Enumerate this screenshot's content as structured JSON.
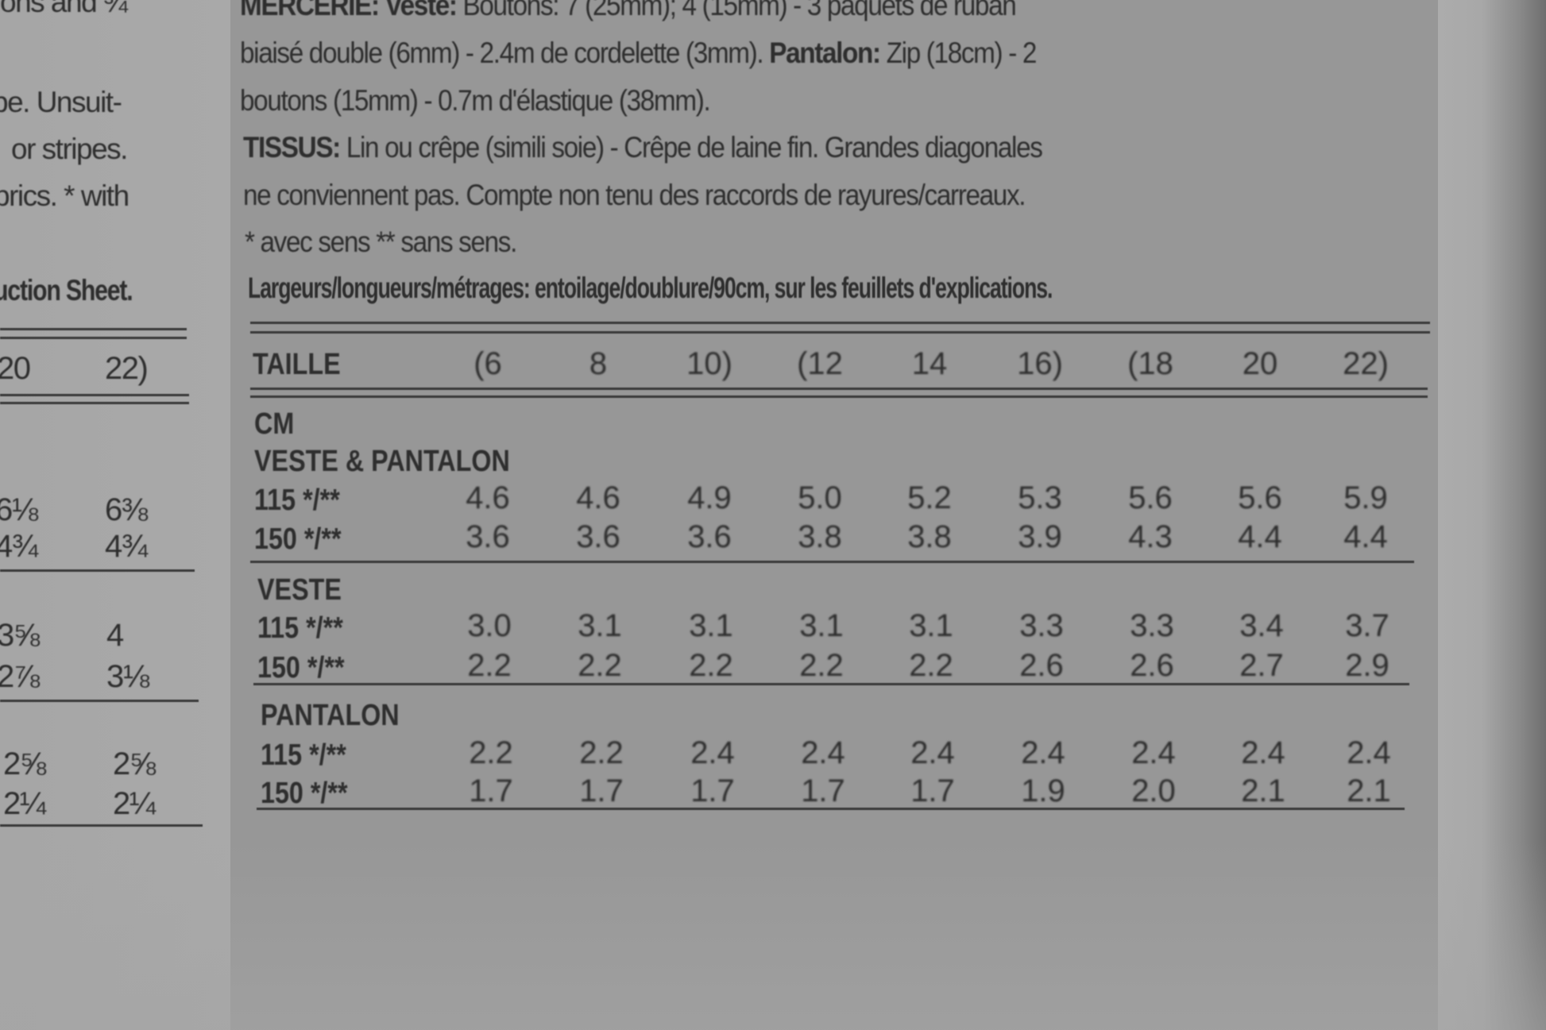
{
  "left_column": {
    "lines": [
      "ons and ¾",
      "pe. Unsuit-",
      "or stripes.",
      "brics. * with",
      "uction Sheet."
    ],
    "header": [
      "20",
      "22)"
    ],
    "rows": [
      [
        "6⅛",
        "6⅜"
      ],
      [
        "4¾",
        "4¾"
      ],
      [
        "3⅝",
        "4"
      ],
      [
        "2⅞",
        "3⅛"
      ],
      [
        "2⅝",
        "2⅝"
      ],
      [
        "2¼",
        "2¼"
      ]
    ]
  },
  "notions": {
    "line1_bold": "MERCERIE: Veste:",
    "line1_rest": " Boutons: 7 (25mm); 4 (15mm) - 3 paquets de ruban",
    "line2_a": "biaisé double (6mm) - 2.4m de cordelette (3mm). ",
    "line2_bold": "Pantalon:",
    "line2_b": " Zip (18cm) - 2",
    "line3": "boutons (15mm) - 0.7m d'élastique (38mm).",
    "fabric_bold": "TISSUS:",
    "fabric_rest": " Lin ou crêpe (simili soie) - Crêpe de laine fin. Grandes diagonales",
    "line5": "ne conviennent pas. Compte non tenu des raccords de rayures/carreaux.",
    "line6": "* avec sens ** sans sens.",
    "line7": "Largeurs/longueurs/métrages: entoilage/doublure/90cm, sur les feuillets d'explications."
  },
  "table": {
    "header_label": "TAILLE",
    "sizes": [
      "(6",
      "8",
      "10)",
      "(12",
      "14",
      "16)",
      "(18",
      "20",
      "22)"
    ],
    "unit": "CM",
    "sections": [
      {
        "title": "VESTE & PANTALON",
        "rows": [
          {
            "label": "115 */**",
            "values": [
              "4.6",
              "4.6",
              "4.9",
              "5.0",
              "5.2",
              "5.3",
              "5.6",
              "5.6",
              "5.9"
            ]
          },
          {
            "label": "150 */**",
            "values": [
              "3.6",
              "3.6",
              "3.6",
              "3.8",
              "3.8",
              "3.9",
              "4.3",
              "4.4",
              "4.4"
            ]
          }
        ]
      },
      {
        "title": "VESTE",
        "rows": [
          {
            "label": "115 */**",
            "values": [
              "3.0",
              "3.1",
              "3.1",
              "3.1",
              "3.1",
              "3.3",
              "3.3",
              "3.4",
              "3.7"
            ]
          },
          {
            "label": "150 */**",
            "values": [
              "2.2",
              "2.2",
              "2.2",
              "2.2",
              "2.2",
              "2.6",
              "2.6",
              "2.7",
              "2.9"
            ]
          }
        ]
      },
      {
        "title": "PANTALON",
        "rows": [
          {
            "label": "115 */**",
            "values": [
              "2.2",
              "2.2",
              "2.4",
              "2.4",
              "2.4",
              "2.4",
              "2.4",
              "2.4",
              "2.4"
            ]
          },
          {
            "label": "150 */**",
            "values": [
              "1.7",
              "1.7",
              "1.7",
              "1.7",
              "1.7",
              "1.9",
              "2.0",
              "2.1",
              "2.1"
            ]
          }
        ]
      }
    ]
  }
}
